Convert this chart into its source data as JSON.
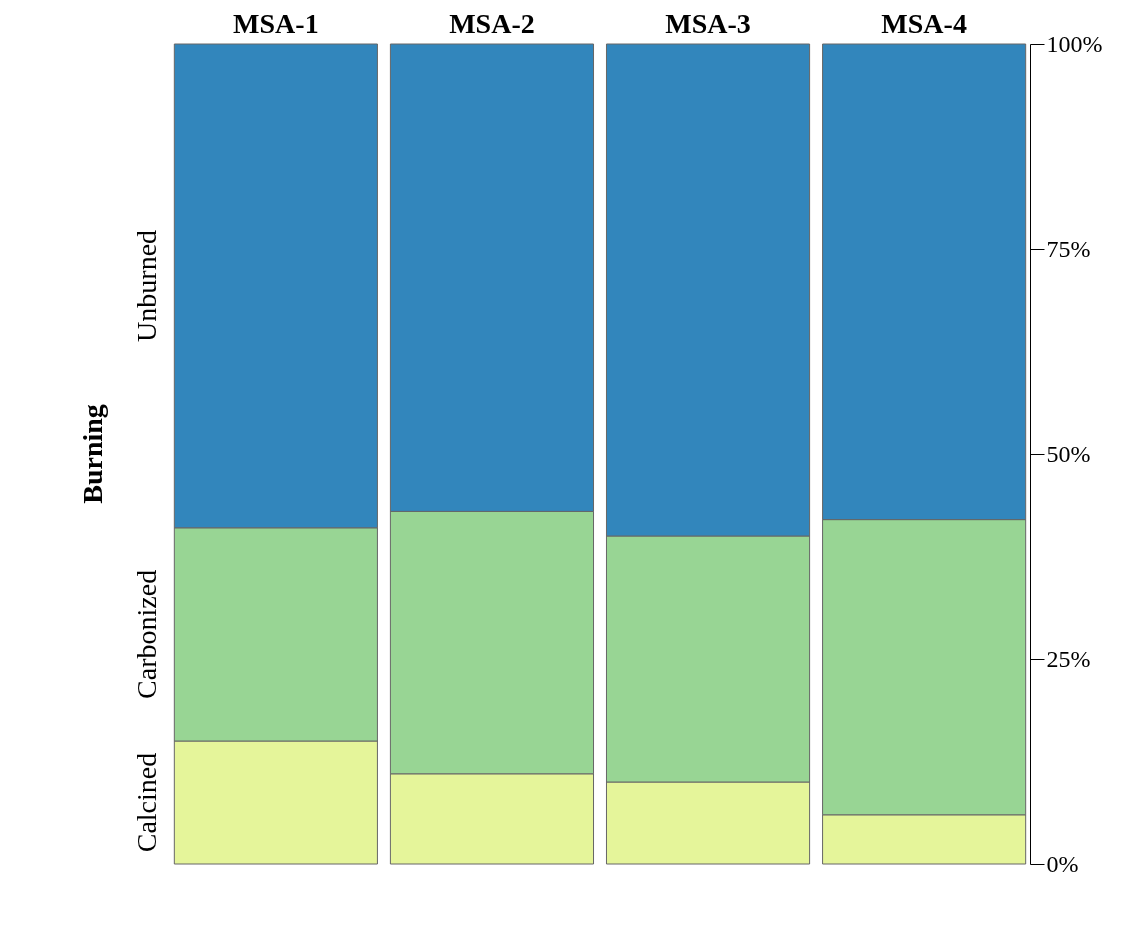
{
  "chart_data": {
    "type": "bar",
    "stacked": true,
    "ylabel": "Burning",
    "categories": [
      "MSA-1",
      "MSA-2",
      "MSA-3",
      "MSA-4"
    ],
    "series": [
      {
        "name": "Calcined",
        "color": "#e5f59a",
        "values": [
          15,
          11,
          10,
          6
        ]
      },
      {
        "name": "Carbonized",
        "color": "#98d594",
        "values": [
          26,
          32,
          30,
          36
        ]
      },
      {
        "name": "Unburned",
        "color": "#3286bc",
        "values": [
          59,
          57,
          60,
          58
        ]
      }
    ],
    "ylim": [
      0,
      100
    ],
    "yticks": [
      {
        "value": 0,
        "label": "0%"
      },
      {
        "value": 25,
        "label": "25%"
      },
      {
        "value": 50,
        "label": "50%"
      },
      {
        "value": 75,
        "label": "75%"
      },
      {
        "value": 100,
        "label": "100%"
      }
    ],
    "grid": false,
    "legend": false
  }
}
